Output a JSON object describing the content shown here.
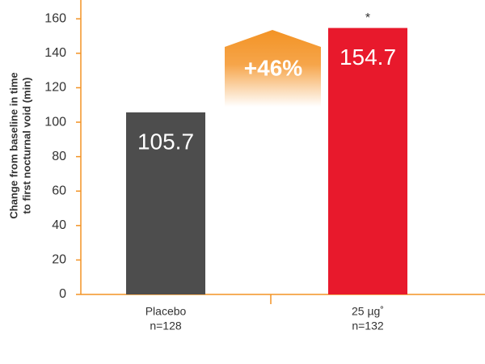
{
  "chart_data": {
    "type": "bar",
    "y_label_lines": [
      "Change from baseline in time",
      "to first nocturnal void (min)"
    ],
    "categories": [
      "Placebo",
      "25 µg˚"
    ],
    "category_notes": [
      "n=128",
      "n=132"
    ],
    "values": [
      105.7,
      154.7
    ],
    "colors": [
      "#4d4d4d",
      "#e8192c"
    ],
    "ylim": [
      0,
      170
    ],
    "yticks": [
      0,
      20,
      40,
      60,
      80,
      100,
      120,
      140,
      160
    ],
    "axis_color": "#f39325",
    "annotations": {
      "difference": "+46%",
      "significance": "*"
    }
  }
}
